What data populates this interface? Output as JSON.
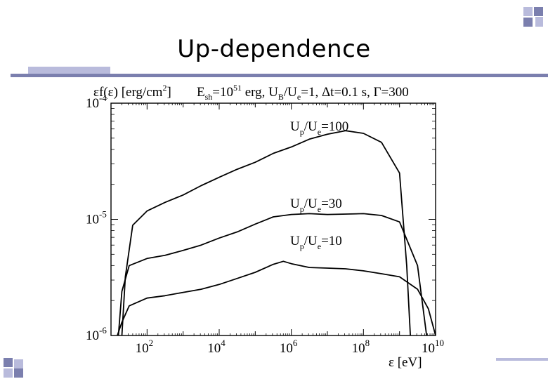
{
  "slide": {
    "title": "Up-dependence"
  },
  "colors": {
    "rule": "#7b7fae",
    "rule_light": "#b9bbdc",
    "curve": "#000000"
  },
  "chart_data": {
    "type": "line",
    "title": "",
    "ylabel": "εf(ε) [erg/cm2]",
    "xlabel": "ε [eV]",
    "annotation": "Esh=1051 erg, UB/Ue=1, Δt=0.1 s, Γ=300",
    "x_scale": "log",
    "y_scale": "log",
    "xlim": [
      10,
      10000000000.0
    ],
    "ylim": [
      1e-06,
      0.0001
    ],
    "x_ticks": [
      100,
      10000,
      1000000,
      100000000,
      10000000000
    ],
    "x_tick_labels": [
      "10^2",
      "10^4",
      "10^6",
      "10^8",
      "10^10"
    ],
    "y_ticks": [
      1e-06,
      1e-05,
      0.0001
    ],
    "y_tick_labels": [
      "10^-6",
      "10^-5",
      "10^-4"
    ],
    "grid": false,
    "series": [
      {
        "name": "Up/Ue=100",
        "points": [
          [
            20,
            1e-06
          ],
          [
            25,
            3.2e-06
          ],
          [
            40,
            8.9e-06
          ],
          [
            100,
            1.18e-05
          ],
          [
            316,
            1.4e-05
          ],
          [
            1000,
            1.62e-05
          ],
          [
            3160,
            1.95e-05
          ],
          [
            10000,
            2.3e-05
          ],
          [
            31600,
            2.7e-05
          ],
          [
            100000,
            3.1e-05
          ],
          [
            316000,
            3.7e-05
          ],
          [
            1000000,
            4.2e-05
          ],
          [
            3160000,
            4.9e-05
          ],
          [
            10000000,
            5.4e-05
          ],
          [
            31600000,
            5.8e-05
          ],
          [
            100000000,
            5.5e-05
          ],
          [
            316000000,
            4.6e-05
          ],
          [
            1000000000,
            2.5e-05
          ],
          [
            1580000000,
            4e-06
          ],
          [
            2000000000,
            1e-06
          ]
        ]
      },
      {
        "name": "Up/Ue=30",
        "points": [
          [
            16,
            1e-06
          ],
          [
            20,
            2.4e-06
          ],
          [
            32,
            4e-06
          ],
          [
            100,
            4.6e-06
          ],
          [
            316,
            4.9e-06
          ],
          [
            1000,
            5.4e-06
          ],
          [
            3160,
            6e-06
          ],
          [
            10000,
            6.9e-06
          ],
          [
            31600,
            7.8e-06
          ],
          [
            100000,
            9.1e-06
          ],
          [
            316000,
            1.05e-05
          ],
          [
            1000000,
            1.1e-05
          ],
          [
            3160000,
            1.12e-05
          ],
          [
            10000000,
            1.1e-05
          ],
          [
            100000000,
            1.12e-05
          ],
          [
            316000000,
            1.08e-05
          ],
          [
            1000000000,
            9.5e-06
          ],
          [
            3160000000,
            4e-06
          ],
          [
            5620000000,
            1e-06
          ]
        ]
      },
      {
        "name": "Up/Ue=10",
        "points": [
          [
            15,
            1e-06
          ],
          [
            20,
            1.3e-06
          ],
          [
            32,
            1.8e-06
          ],
          [
            100,
            2.1e-06
          ],
          [
            316,
            2.2e-06
          ],
          [
            1000,
            2.35e-06
          ],
          [
            3160,
            2.5e-06
          ],
          [
            10000,
            2.75e-06
          ],
          [
            31600,
            3.1e-06
          ],
          [
            100000,
            3.5e-06
          ],
          [
            316000,
            4.1e-06
          ],
          [
            600000,
            4.35e-06
          ],
          [
            1000000,
            4.15e-06
          ],
          [
            3160000,
            3.85e-06
          ],
          [
            10000000,
            3.8e-06
          ],
          [
            31600000,
            3.75e-06
          ],
          [
            100000000,
            3.6e-06
          ],
          [
            316000000,
            3.4e-06
          ],
          [
            1000000000,
            3.2e-06
          ],
          [
            3160000000,
            2.5e-06
          ],
          [
            6300000000,
            1.7e-06
          ],
          [
            10000000000,
            1e-06
          ]
        ]
      }
    ]
  }
}
